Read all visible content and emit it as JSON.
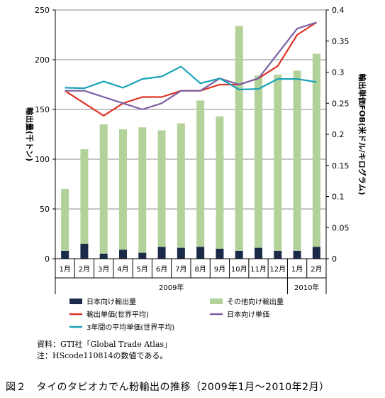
{
  "chart_data": {
    "type": "bar",
    "categories": [
      "1月",
      "2月",
      "3月",
      "4月",
      "5月",
      "6月",
      "7月",
      "8月",
      "9月",
      "10月",
      "11月",
      "12月",
      "1月",
      "2月"
    ],
    "year_labels": [
      {
        "label": "2009年",
        "from": 0,
        "to": 11
      },
      {
        "label": "2010年",
        "from": 12,
        "to": 13
      }
    ],
    "ylabel": "輸出量(千トン)",
    "y2label": "輸出単価FOB(米ドル/キログラム)",
    "ylim": [
      0,
      250
    ],
    "y2lim": [
      0,
      0.4
    ],
    "yticks": [
      0,
      50,
      100,
      150,
      200,
      250
    ],
    "y2ticks": [
      "0",
      "0.05",
      "0.1",
      "0.15",
      "0.2",
      "0.25",
      "0.3",
      "0.35",
      "0.4"
    ],
    "y2tick_values": [
      0,
      0.05,
      0.1,
      0.15,
      0.2,
      0.25,
      0.3,
      0.35,
      0.4
    ],
    "legend_placement": "bottom",
    "bar_series": [
      {
        "name": "日本向け輸出量",
        "color": "#1c2a4a",
        "values": [
          8,
          15,
          5,
          9,
          6,
          12,
          11,
          12,
          10,
          8,
          11,
          8,
          8,
          12
        ]
      },
      {
        "name": "その他向け輸出量",
        "color": "#b3d29a",
        "values": [
          62,
          95,
          130,
          121,
          126,
          117,
          125,
          147,
          133,
          226,
          173,
          177,
          181,
          194
        ]
      }
    ],
    "line_series": [
      {
        "name": "輸出単価(世界平均)",
        "color": "#e03226",
        "axis": "y2",
        "values": [
          0.27,
          0.25,
          0.23,
          0.25,
          0.26,
          0.26,
          0.27,
          0.27,
          0.28,
          0.28,
          0.29,
          0.31,
          0.36,
          0.38
        ]
      },
      {
        "name": "日本向け単価",
        "color": "#7b5fa4",
        "axis": "y2",
        "values": [
          0.27,
          0.27,
          0.26,
          0.25,
          0.24,
          0.25,
          0.27,
          0.27,
          0.29,
          0.28,
          0.29,
          0.33,
          0.37,
          0.38
        ]
      },
      {
        "name": "3年間の平均単価(世界平均)",
        "color": "#1aa3b8",
        "axis": "y2",
        "values": [
          0.275,
          0.274,
          0.285,
          0.275,
          0.289,
          0.293,
          0.309,
          0.282,
          0.29,
          0.272,
          0.273,
          0.289,
          0.289,
          0.284
        ]
      }
    ]
  },
  "source": {
    "line1": "資料：GTI社「Global Trade Atlas」",
    "line2": "注：HScode110814の数値である。"
  },
  "caption": "図２　タイのタピオカでん粉輸出の推移（2009年1月～2010年2月）"
}
